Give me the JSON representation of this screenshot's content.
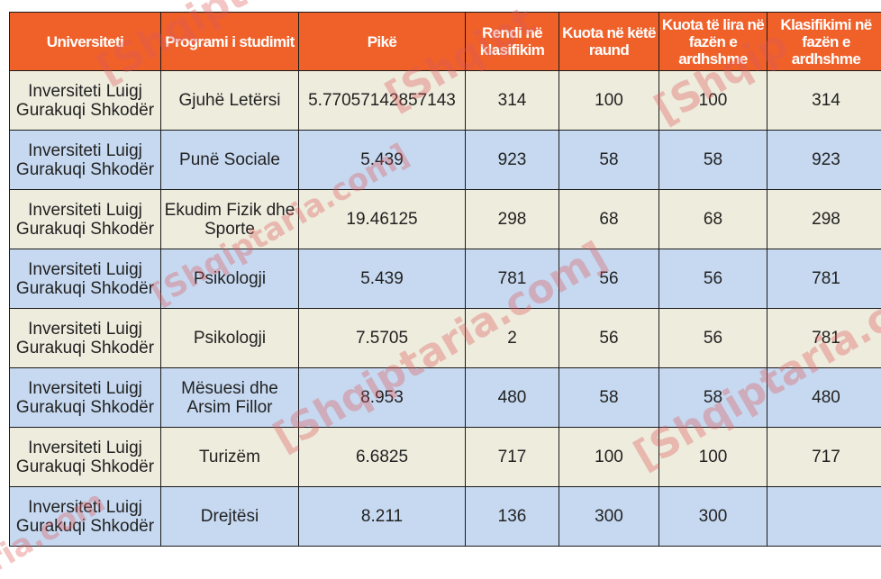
{
  "watermark": "[Shqiptaria.com]",
  "colors": {
    "header": "#f0612a",
    "row_beige": "#eeecdd",
    "row_blue": "#c6d9f1"
  },
  "headers": [
    "Universiteti",
    "Programi i studimit",
    "Pikë",
    "Rendi në klasifikim",
    "Kuota në këtë raund",
    "Kuota të lira në fazën e ardhshme",
    "Klasifikimi në fazën e ardhshme"
  ],
  "rows": [
    [
      "Inversiteti Luigj Gurakuqi Shkodër",
      "Gjuhë Letërsi",
      "5.77057142857143",
      "314",
      "100",
      "100",
      "314"
    ],
    [
      "Inversiteti Luigj Gurakuqi Shkodër",
      "Punë Sociale",
      "5.439",
      "923",
      "58",
      "58",
      "923"
    ],
    [
      "Inversiteti Luigj Gurakuqi Shkodër",
      "Ekudim Fizik dhe Sporte",
      "19.46125",
      "298",
      "68",
      "68",
      "298"
    ],
    [
      "Inversiteti Luigj Gurakuqi Shkodër",
      "Psikologji",
      "5.439",
      "781",
      "56",
      "56",
      "781"
    ],
    [
      "Inversiteti Luigj Gurakuqi Shkodër",
      "Psikologji",
      "7.5705",
      "2",
      "56",
      "56",
      "781"
    ],
    [
      "Inversiteti Luigj Gurakuqi Shkodër",
      "Mësuesi dhe Arsim Fillor",
      "8.953",
      "480",
      "58",
      "58",
      "480"
    ],
    [
      "Inversiteti Luigj Gurakuqi Shkodër",
      "Turizëm",
      "6.6825",
      "717",
      "100",
      "100",
      "717"
    ],
    [
      "Inversiteti Luigj Gurakuqi Shkodër",
      "Drejtësi",
      "8.211",
      "136",
      "300",
      "300",
      ""
    ]
  ]
}
